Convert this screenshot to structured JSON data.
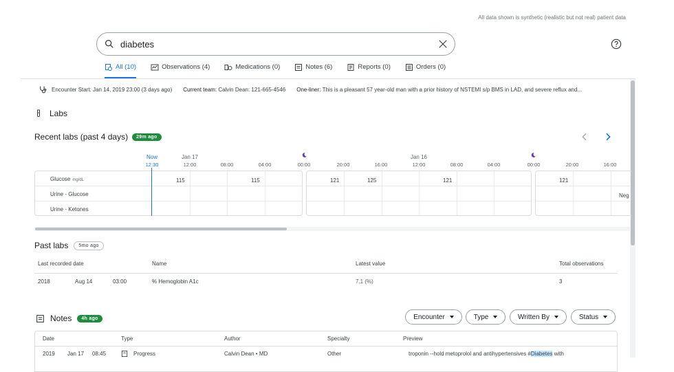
{
  "disclaimer": "All data shown is synthetic (realistic but not real) patient data",
  "search": {
    "value": "diabetes"
  },
  "tabs": [
    {
      "label": "All (10)",
      "icon": "all-results-icon"
    },
    {
      "label": "Observations (4)",
      "icon": "chart-icon"
    },
    {
      "label": "Medications (0)",
      "icon": "pill-icon"
    },
    {
      "label": "Notes (6)",
      "icon": "note-icon"
    },
    {
      "label": "Reports (0)",
      "icon": "report-icon"
    },
    {
      "label": "Orders (0)",
      "icon": "order-icon"
    }
  ],
  "encounter": {
    "start_label": "Encounter Start:",
    "start_value": "Jan 14, 2019  23:00 (3 days ago)",
    "team_label": "Current team:",
    "team_value": "Calvin Dean: 121-665-4546",
    "oneliner_label": "One-liner:",
    "oneliner_value": "This is a pleasant 57 year-old man with a prior history of NSTEMI s/p BMS in LAD, and severe reflux and..."
  },
  "labs": {
    "title": "Labs",
    "recent_title": "Recent labs (past 4 days)",
    "recent_badge": "29m ago",
    "now_label": "Now",
    "now_time": "12:30",
    "date_labels": [
      "Jan 17",
      "Jan 16"
    ],
    "times": [
      "12:00",
      "08:00",
      "04:00",
      "00:00",
      "20:00",
      "16:00",
      "12:00",
      "08:00",
      "04:00",
      "00:00",
      "20:00",
      "16:00"
    ],
    "rows": [
      {
        "label": "Glucose",
        "unit": "mg/dL"
      },
      {
        "label": "Urine - Glucose",
        "unit": ""
      },
      {
        "label": "Urine - Ketones",
        "unit": ""
      }
    ],
    "glucose_values": [
      "115",
      "115",
      "121",
      "125",
      "121",
      "121"
    ],
    "urine_glucose_value": "Neg"
  },
  "past_labs": {
    "title": "Past labs",
    "badge": "5mo ago",
    "columns": [
      "Last recorded date",
      "Name",
      "Latest value",
      "Total observations"
    ],
    "rows": [
      {
        "year": "2018",
        "date": "Aug 14",
        "time": "03:00",
        "name": "% Hemoglobin A1c",
        "value": "7.1 (%)",
        "total": "3"
      }
    ]
  },
  "notes": {
    "title": "Notes",
    "badge": "4h ago",
    "filters": [
      "Encounter",
      "Type",
      "Written By",
      "Status"
    ],
    "columns": [
      "Date",
      "Type",
      "Author",
      "Specialty",
      "Preview"
    ],
    "rows": [
      {
        "year": "2019",
        "date": "Jan 17",
        "time": "08:45",
        "type": "Progress",
        "author": "Calvin Dean • MD",
        "specialty": "Other",
        "preview_pre": "troponin --hold metoprolol and antihypertensives #",
        "preview_hl": "Diabetes",
        "preview_post": " with"
      }
    ]
  }
}
